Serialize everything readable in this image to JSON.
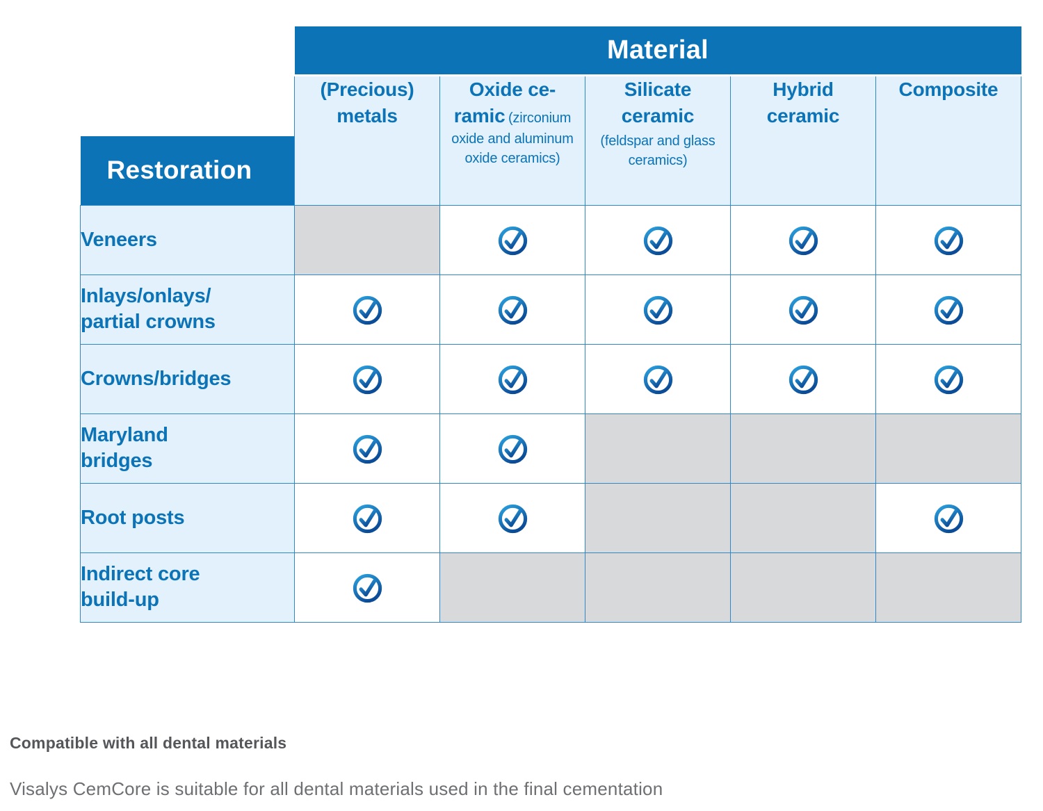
{
  "chart_data": {
    "type": "table",
    "title": "Material",
    "corner_header": "Restoration",
    "columns": [
      {
        "name": "(Precious) metals",
        "lines": [
          "(Precious)",
          "metals"
        ],
        "note": "",
        "note_layout": "none"
      },
      {
        "name": "Oxide ceramic",
        "lines": [
          "Oxide ce-",
          "ramic"
        ],
        "note": "(zirconium oxide and aluminum oxide ceramics)",
        "note_layout": "inline"
      },
      {
        "name": "Silicate ceramic",
        "lines": [
          "Silicate",
          "ceramic"
        ],
        "note": "(feldspar and glass ceramics)",
        "note_layout": "block"
      },
      {
        "name": "Hybrid ceramic",
        "lines": [
          "Hybrid",
          "ceramic"
        ],
        "note": "",
        "note_layout": "none"
      },
      {
        "name": "Composite",
        "lines": [
          "Composite"
        ],
        "note": "",
        "note_layout": "none"
      }
    ],
    "rows": [
      {
        "name": "Veneers",
        "lines": [
          "Veneers"
        ],
        "compatible": [
          false,
          true,
          true,
          true,
          true
        ]
      },
      {
        "name": "Inlays/onlays/partial crowns",
        "lines": [
          "Inlays/onlays/",
          "partial crowns"
        ],
        "compatible": [
          true,
          true,
          true,
          true,
          true
        ]
      },
      {
        "name": "Crowns/bridges",
        "lines": [
          "Crowns/bridges"
        ],
        "compatible": [
          true,
          true,
          true,
          true,
          true
        ]
      },
      {
        "name": "Maryland bridges",
        "lines": [
          "Maryland",
          "bridges"
        ],
        "compatible": [
          true,
          true,
          false,
          false,
          false
        ]
      },
      {
        "name": "Root posts",
        "lines": [
          "Root posts"
        ],
        "compatible": [
          true,
          true,
          false,
          false,
          true
        ]
      },
      {
        "name": "Indirect core build-up",
        "lines": [
          "Indirect core",
          "build-up"
        ],
        "compatible": [
          true,
          false,
          false,
          false,
          false
        ]
      }
    ],
    "cell_semantics": {
      "check_circle": "compatible",
      "gray_cell": "not compatible"
    },
    "legend_position": "none",
    "grid": true
  },
  "footnotes": {
    "bold": "Compatible with all dental materials",
    "regular": "Visalys CemCore is suitable for all dental materials used in the final cementation"
  },
  "colors": {
    "header_blue": "#0B73B6",
    "cell_light_blue": "#E2F1FB",
    "grid_border_blue": "#2F87C6",
    "incompatible_gray": "#D8D9DA",
    "check_gradient_light": "#2BA2DF",
    "check_gradient_dark": "#0C4C97",
    "footnote_bold_gray": "#55565A",
    "footnote_regular_gray": "#6E6F72"
  },
  "icons": {
    "check": "check-circle-icon"
  }
}
